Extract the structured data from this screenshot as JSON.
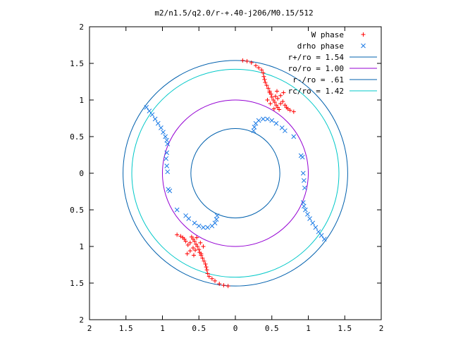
{
  "chart_data": {
    "type": "scatter",
    "title": "m2/n1.5/q2.0/r-+.40-j206/M0.15/512",
    "xlim": [
      -2,
      2
    ],
    "ylim": [
      -2,
      2
    ],
    "x_tick_values": [
      -2,
      -1.5,
      -1,
      -0.5,
      0,
      0.5,
      1,
      1.5,
      2
    ],
    "x_tick_labels": [
      "2",
      "1.5",
      "1",
      "0.5",
      "0",
      "0.5",
      "1",
      "1.5",
      "2"
    ],
    "y_tick_values": [
      2,
      1.5,
      1,
      0.5,
      0,
      -0.5,
      -1,
      -1.5,
      -2
    ],
    "y_tick_labels": [
      "2",
      "1.5",
      "1",
      "0.5",
      "0",
      "0.5",
      "1",
      "1.5",
      "2"
    ],
    "grid": false,
    "legend_position": "top-right",
    "circles": [
      {
        "name": "r+/ro = 1.54",
        "radius": 1.54,
        "color": "#0060ad"
      },
      {
        "name": "ro/ro = 1.00",
        "radius": 1.0,
        "color": "#9400d3"
      },
      {
        "name": "r-/ro = .61",
        "radius": 0.61,
        "color": "#0060ad"
      },
      {
        "name": "rc/ro = 1.42",
        "radius": 1.42,
        "color": "#00c8c8"
      }
    ],
    "series": [
      {
        "name": "W phase",
        "marker": "+",
        "color": "#ff0000",
        "points": [
          [
            0.1,
            1.54
          ],
          [
            0.16,
            1.53
          ],
          [
            0.22,
            1.51
          ],
          [
            0.28,
            1.47
          ],
          [
            0.32,
            1.44
          ],
          [
            0.36,
            1.41
          ],
          [
            0.38,
            1.37
          ],
          [
            0.39,
            1.32
          ],
          [
            0.4,
            1.28
          ],
          [
            0.41,
            1.24
          ],
          [
            0.43,
            1.2
          ],
          [
            0.45,
            1.16
          ],
          [
            0.47,
            1.12
          ],
          [
            0.49,
            1.08
          ],
          [
            0.5,
            1.04
          ],
          [
            0.52,
            1.0
          ],
          [
            0.54,
            0.97
          ],
          [
            0.56,
            0.93
          ],
          [
            0.58,
            0.9
          ],
          [
            0.6,
            0.87
          ],
          [
            0.62,
            0.95
          ],
          [
            0.65,
            0.98
          ],
          [
            0.68,
            0.93
          ],
          [
            0.7,
            0.9
          ],
          [
            0.72,
            0.88
          ],
          [
            0.75,
            0.86
          ],
          [
            0.55,
            1.05
          ],
          [
            0.58,
            1.02
          ],
          [
            0.62,
            1.06
          ],
          [
            0.66,
            1.1
          ],
          [
            0.47,
            1.1
          ],
          [
            0.44,
            1.0
          ],
          [
            0.48,
            0.95
          ],
          [
            0.53,
            0.88
          ],
          [
            0.8,
            0.84
          ],
          [
            0.57,
            1.12
          ],
          [
            -0.1,
            -1.54
          ],
          [
            -0.16,
            -1.53
          ],
          [
            -0.22,
            -1.51
          ],
          [
            -0.28,
            -1.47
          ],
          [
            -0.32,
            -1.44
          ],
          [
            -0.36,
            -1.41
          ],
          [
            -0.38,
            -1.37
          ],
          [
            -0.39,
            -1.32
          ],
          [
            -0.4,
            -1.28
          ],
          [
            -0.41,
            -1.24
          ],
          [
            -0.43,
            -1.2
          ],
          [
            -0.45,
            -1.16
          ],
          [
            -0.47,
            -1.12
          ],
          [
            -0.49,
            -1.08
          ],
          [
            -0.5,
            -1.04
          ],
          [
            -0.52,
            -1.0
          ],
          [
            -0.54,
            -0.97
          ],
          [
            -0.56,
            -0.93
          ],
          [
            -0.58,
            -0.9
          ],
          [
            -0.6,
            -0.87
          ],
          [
            -0.62,
            -0.95
          ],
          [
            -0.65,
            -0.98
          ],
          [
            -0.68,
            -0.93
          ],
          [
            -0.7,
            -0.9
          ],
          [
            -0.72,
            -0.88
          ],
          [
            -0.75,
            -0.86
          ],
          [
            -0.55,
            -1.05
          ],
          [
            -0.58,
            -1.02
          ],
          [
            -0.62,
            -1.06
          ],
          [
            -0.66,
            -1.1
          ],
          [
            -0.47,
            -1.1
          ],
          [
            -0.44,
            -1.0
          ],
          [
            -0.48,
            -0.95
          ],
          [
            -0.53,
            -0.88
          ],
          [
            -0.8,
            -0.84
          ],
          [
            -0.57,
            -1.12
          ]
        ]
      },
      {
        "name": "drho phase",
        "marker": "x",
        "color": "#1a7ae6",
        "points": [
          [
            -1.22,
            0.9
          ],
          [
            -1.18,
            0.85
          ],
          [
            -1.14,
            0.8
          ],
          [
            -1.1,
            0.74
          ],
          [
            -1.06,
            0.68
          ],
          [
            -1.02,
            0.62
          ],
          [
            -0.99,
            0.56
          ],
          [
            -0.96,
            0.5
          ],
          [
            -0.94,
            0.45
          ],
          [
            -0.93,
            0.4
          ],
          [
            -0.94,
            0.28
          ],
          [
            -0.95,
            0.2
          ],
          [
            -0.94,
            0.1
          ],
          [
            -0.93,
            0.02
          ],
          [
            -0.92,
            -0.22
          ],
          [
            -0.9,
            -0.24
          ],
          [
            -0.8,
            -0.5
          ],
          [
            -0.68,
            -0.58
          ],
          [
            -0.64,
            -0.62
          ],
          [
            -0.56,
            -0.68
          ],
          [
            -0.5,
            -0.72
          ],
          [
            -0.44,
            -0.74
          ],
          [
            -0.38,
            -0.74
          ],
          [
            -0.32,
            -0.72
          ],
          [
            -0.28,
            -0.68
          ],
          [
            -0.26,
            -0.63
          ],
          [
            -0.25,
            -0.58
          ],
          [
            1.22,
            -0.9
          ],
          [
            1.18,
            -0.85
          ],
          [
            1.14,
            -0.8
          ],
          [
            1.1,
            -0.74
          ],
          [
            1.06,
            -0.68
          ],
          [
            1.02,
            -0.62
          ],
          [
            0.99,
            -0.56
          ],
          [
            0.96,
            -0.5
          ],
          [
            0.94,
            -0.45
          ],
          [
            0.93,
            -0.4
          ],
          [
            0.95,
            -0.2
          ],
          [
            0.94,
            -0.1
          ],
          [
            0.93,
            0.0
          ],
          [
            0.92,
            0.22
          ],
          [
            0.9,
            0.24
          ],
          [
            0.8,
            0.5
          ],
          [
            0.68,
            0.58
          ],
          [
            0.64,
            0.62
          ],
          [
            0.56,
            0.68
          ],
          [
            0.5,
            0.72
          ],
          [
            0.44,
            0.74
          ],
          [
            0.38,
            0.74
          ],
          [
            0.32,
            0.72
          ],
          [
            0.28,
            0.68
          ],
          [
            0.26,
            0.63
          ],
          [
            0.25,
            0.58
          ]
        ]
      }
    ]
  }
}
